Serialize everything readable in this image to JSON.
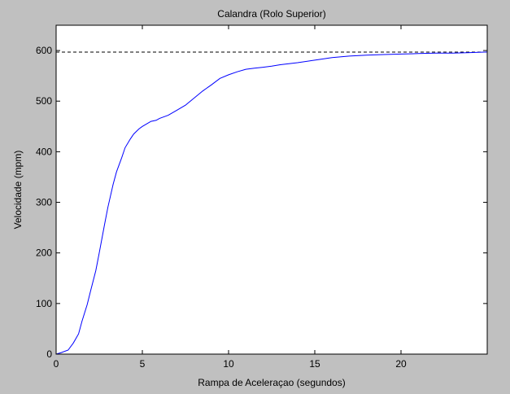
{
  "chart_data": {
    "type": "line",
    "title": "Calandra (Rolo Superior)",
    "xlabel": "Rampa de Aceleraçao (segundos)",
    "ylabel": "Velocidade (mpm)",
    "xlim": [
      0,
      25
    ],
    "ylim": [
      0,
      650
    ],
    "xticks": [
      0,
      5,
      10,
      15,
      20
    ],
    "yticks": [
      0,
      100,
      200,
      300,
      400,
      500,
      600
    ],
    "grid": false,
    "colors": {
      "figure_bg": "#c0c0c0",
      "axes_bg": "#ffffff",
      "line": "#0000ff",
      "reference": "#000000"
    },
    "reference_line": {
      "y": 597,
      "style": "dashed"
    },
    "series": [
      {
        "x": [
          0,
          0.3,
          0.7,
          1.0,
          1.3,
          1.5,
          1.8,
          2.0,
          2.3,
          2.5,
          2.8,
          3.0,
          3.3,
          3.5,
          3.8,
          4.0,
          4.3,
          4.5,
          4.8,
          5.0,
          5.3,
          5.5,
          5.8,
          6.0,
          6.5,
          7.0,
          7.5,
          8.0,
          8.5,
          9.0,
          9.5,
          10.0,
          10.5,
          11.0,
          11.5,
          12.0,
          12.5,
          13.0,
          14.0,
          15.0,
          16.0,
          17.0,
          18.0,
          19.0,
          20.0,
          21.0,
          22.0,
          23.0,
          24.0,
          25.0
        ],
        "values": [
          0,
          3,
          8,
          22,
          40,
          65,
          98,
          125,
          165,
          200,
          255,
          290,
          335,
          360,
          388,
          408,
          425,
          435,
          445,
          450,
          456,
          460,
          462,
          466,
          472,
          482,
          492,
          506,
          520,
          532,
          545,
          552,
          558,
          563,
          565,
          567,
          569,
          572,
          576,
          581,
          586,
          589,
          591,
          592,
          593,
          594,
          595,
          595,
          596,
          597
        ]
      }
    ]
  }
}
